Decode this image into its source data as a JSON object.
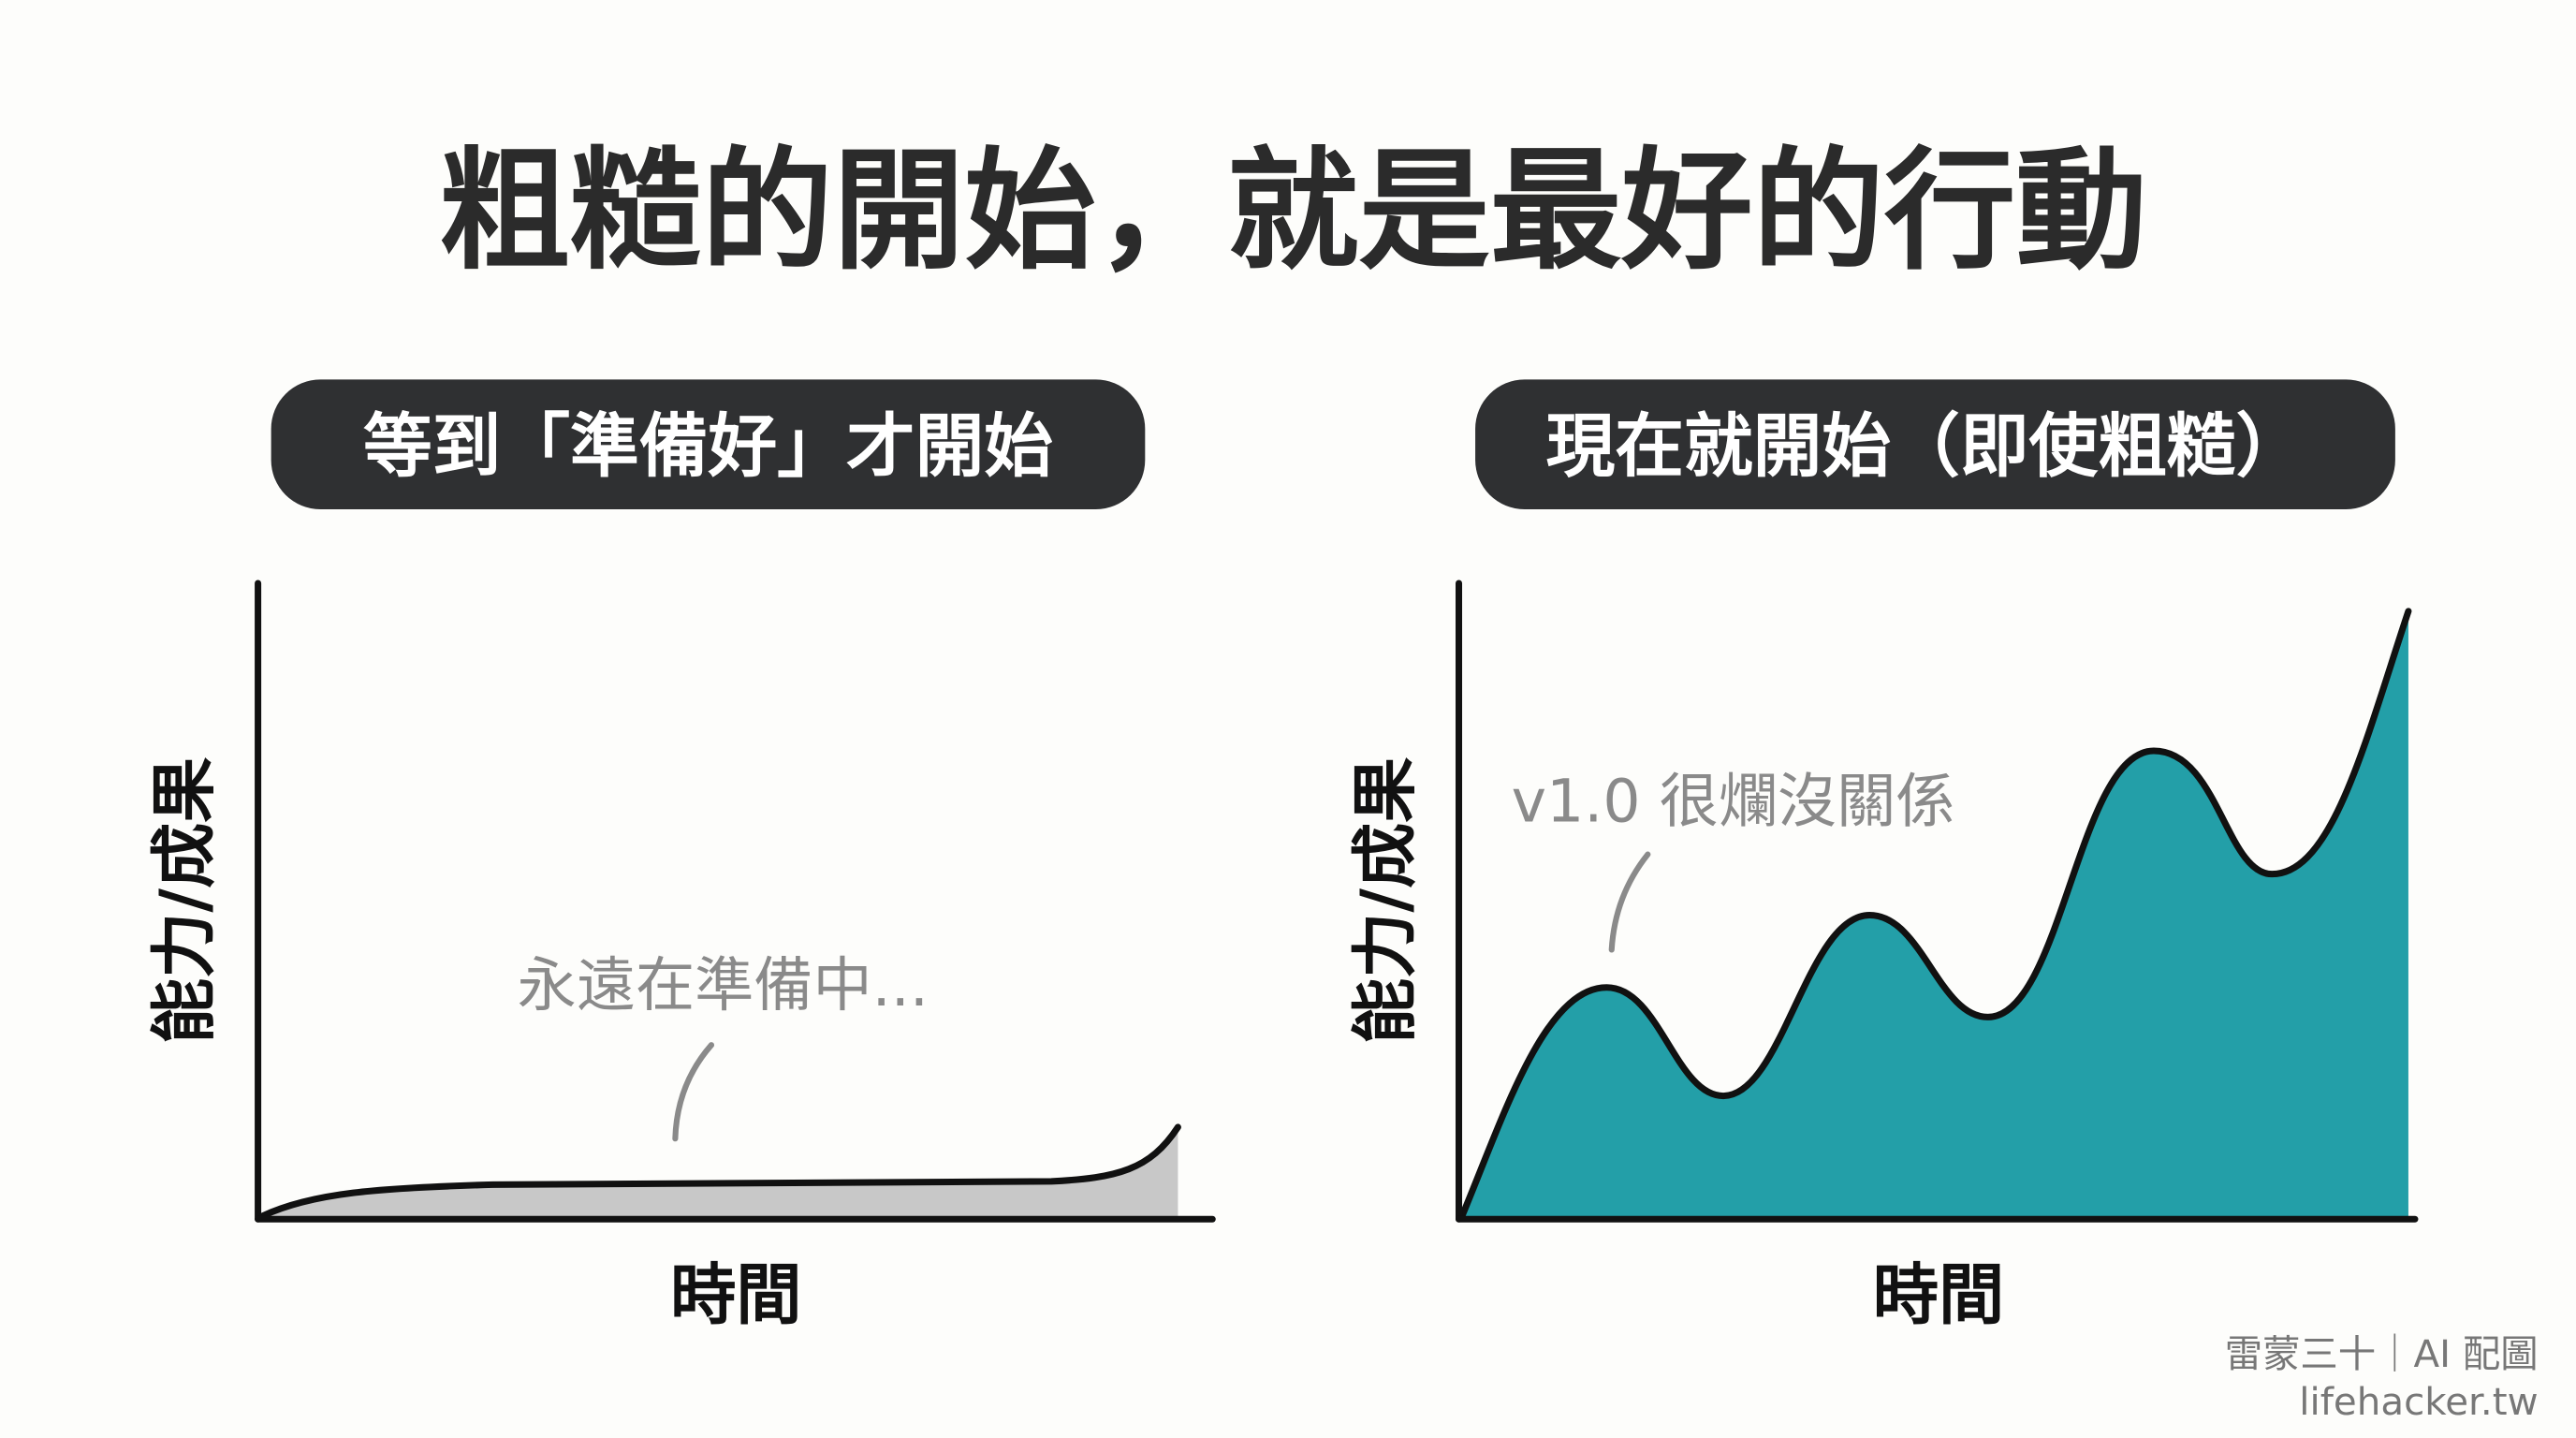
{
  "title": "粗糙的開始，就是最好的行動",
  "left_panel": {
    "heading": "等到「準備好」才開始",
    "ylabel": "能力/成果",
    "xlabel": "時間",
    "annotation": "永遠在準備中...",
    "fill_color": "#c8c8c8",
    "trend": "flat, slight rise at the end"
  },
  "right_panel": {
    "heading": "現在就開始（即使粗糙）",
    "ylabel": "能力/成果",
    "xlabel": "時間",
    "annotation": "v1.0 很爛沒關係",
    "fill_color": "#239fa8",
    "trend": "rising with oscillating peaks and troughs"
  },
  "colors": {
    "pill_bg": "#2f3032",
    "axis": "#111111",
    "annotation": "#8a8a8a"
  },
  "watermark": {
    "line1": "雷蒙三十｜AI 配圖",
    "line2": "lifehacker.tw"
  }
}
